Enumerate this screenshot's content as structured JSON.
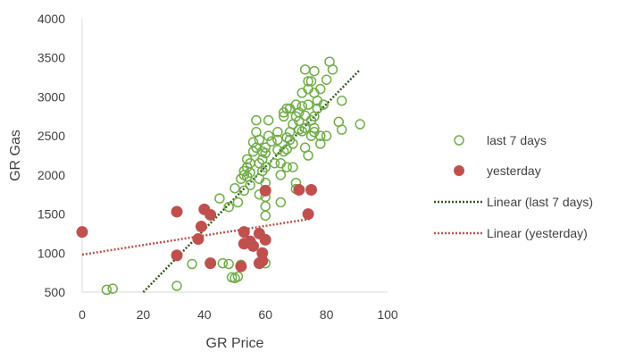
{
  "chart_data": {
    "type": "scatter",
    "title": "",
    "xlabel": "GR Price",
    "ylabel": "GR Gas",
    "xlim": [
      0,
      100
    ],
    "ylim": [
      500,
      4000
    ],
    "xticks": [
      0,
      20,
      40,
      60,
      80,
      100
    ],
    "yticks": [
      500,
      1000,
      1500,
      2000,
      2500,
      3000,
      3500,
      4000
    ],
    "grid": false,
    "legend_position": "right",
    "series": [
      {
        "name": "last 7 days",
        "marker": "hollow-circle",
        "color": "#70AD47",
        "points": [
          [
            8,
            530
          ],
          [
            10,
            545
          ],
          [
            31,
            580
          ],
          [
            36,
            860
          ],
          [
            45,
            1700
          ],
          [
            46,
            870
          ],
          [
            48,
            860
          ],
          [
            49,
            690
          ],
          [
            50,
            680
          ],
          [
            51,
            700
          ],
          [
            52,
            850
          ],
          [
            48,
            1590
          ],
          [
            50,
            1830
          ],
          [
            51,
            1650
          ],
          [
            52,
            1950
          ],
          [
            53,
            1800
          ],
          [
            53,
            2000
          ],
          [
            53,
            2050
          ],
          [
            54,
            1980
          ],
          [
            54,
            2100
          ],
          [
            54,
            2200
          ],
          [
            55,
            2150
          ],
          [
            55,
            2030
          ],
          [
            55,
            1870
          ],
          [
            56,
            2300
          ],
          [
            56,
            2420
          ],
          [
            57,
            2550
          ],
          [
            57,
            2350
          ],
          [
            58,
            2450
          ],
          [
            58,
            2150
          ],
          [
            58,
            1950
          ],
          [
            58,
            1750
          ],
          [
            59,
            2050
          ],
          [
            59,
            2200
          ],
          [
            59,
            2300
          ],
          [
            60,
            2350
          ],
          [
            60,
            2280
          ],
          [
            60,
            2100
          ],
          [
            60,
            1900
          ],
          [
            60,
            1720
          ],
          [
            60,
            1600
          ],
          [
            60,
            1480
          ],
          [
            60,
            870
          ],
          [
            61,
            2500
          ],
          [
            61,
            2700
          ],
          [
            57,
            2700
          ],
          [
            62,
            2430
          ],
          [
            63,
            2150
          ],
          [
            64,
            2320
          ],
          [
            64,
            2450
          ],
          [
            64,
            2550
          ],
          [
            65,
            1650
          ],
          [
            65,
            2000
          ],
          [
            65,
            2150
          ],
          [
            66,
            2300
          ],
          [
            66,
            2750
          ],
          [
            66,
            2800
          ],
          [
            67,
            2850
          ],
          [
            67,
            2480
          ],
          [
            67,
            2330
          ],
          [
            67,
            2100
          ],
          [
            68,
            2550
          ],
          [
            68,
            2450
          ],
          [
            68,
            2850
          ],
          [
            69,
            2650
          ],
          [
            69,
            2400
          ],
          [
            69,
            2100
          ],
          [
            70,
            2900
          ],
          [
            70,
            2750
          ],
          [
            70,
            1900
          ],
          [
            70,
            1820
          ],
          [
            71,
            2580
          ],
          [
            71,
            2690
          ],
          [
            72,
            2880
          ],
          [
            72,
            2560
          ],
          [
            72,
            3050
          ],
          [
            73,
            2760
          ],
          [
            73,
            2350
          ],
          [
            74,
            2250
          ],
          [
            74,
            2900
          ],
          [
            74,
            3100
          ],
          [
            75,
            3200
          ],
          [
            75,
            2700
          ],
          [
            75,
            2500
          ],
          [
            76,
            3050
          ],
          [
            76,
            2600
          ],
          [
            76,
            2750
          ],
          [
            76,
            2550
          ],
          [
            77,
            2950
          ],
          [
            77,
            2850
          ],
          [
            78,
            3100
          ],
          [
            78,
            2500
          ],
          [
            78,
            2400
          ],
          [
            79,
            2900
          ],
          [
            80,
            2500
          ],
          [
            80,
            3220
          ],
          [
            81,
            3450
          ],
          [
            82,
            3350
          ],
          [
            84,
            2680
          ],
          [
            85,
            2580
          ],
          [
            85,
            2950
          ],
          [
            91,
            2650
          ],
          [
            73,
            3350
          ],
          [
            74,
            3200
          ],
          [
            76,
            3330
          ],
          [
            73,
            2600
          ],
          [
            71,
            2800
          ]
        ]
      },
      {
        "name": "yesterday",
        "marker": "filled-circle",
        "color": "#C0504D",
        "points": [
          [
            0,
            1270
          ],
          [
            31,
            1530
          ],
          [
            31,
            970
          ],
          [
            38,
            1180
          ],
          [
            39,
            1340
          ],
          [
            40,
            1560
          ],
          [
            42,
            1490
          ],
          [
            42,
            870
          ],
          [
            52,
            830
          ],
          [
            53,
            1120
          ],
          [
            53,
            1270
          ],
          [
            55,
            1150
          ],
          [
            56,
            1090
          ],
          [
            58,
            1250
          ],
          [
            59,
            900
          ],
          [
            59,
            1000
          ],
          [
            60,
            1170
          ],
          [
            60,
            1800
          ],
          [
            71,
            1810
          ],
          [
            75,
            1810
          ],
          [
            74,
            1500
          ],
          [
            58,
            870
          ]
        ]
      },
      {
        "name": "Linear (last 7 days)",
        "marker": "none",
        "line": "dotted",
        "color": "#375623",
        "points": [
          [
            20,
            500
          ],
          [
            91,
            3350
          ]
        ]
      },
      {
        "name": "Linear (yesterday)",
        "marker": "none",
        "line": "dotted",
        "color": "#C0504D",
        "points": [
          [
            0,
            980
          ],
          [
            75,
            1440
          ]
        ]
      }
    ]
  },
  "legend": [
    {
      "label": "last 7 days"
    },
    {
      "label": "yesterday"
    },
    {
      "label": "Linear (last 7 days)"
    },
    {
      "label": "Linear (yesterday)"
    }
  ],
  "axes": {
    "x_title": "GR Price",
    "y_title": "GR Gas",
    "x_ticks": [
      "0",
      "20",
      "40",
      "60",
      "80",
      "100"
    ],
    "y_ticks": [
      "500",
      "1000",
      "1500",
      "2000",
      "2500",
      "3000",
      "3500",
      "4000"
    ]
  }
}
